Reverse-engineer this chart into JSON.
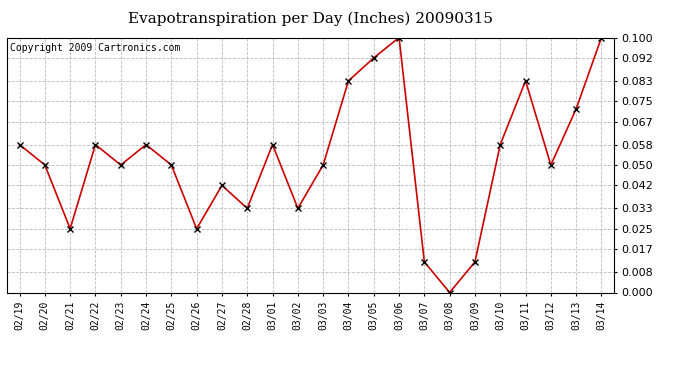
{
  "title": "Evapotranspiration per Day (Inches) 20090315",
  "copyright_text": "Copyright 2009 Cartronics.com",
  "dates": [
    "02/19",
    "02/20",
    "02/21",
    "02/22",
    "02/23",
    "02/24",
    "02/25",
    "02/26",
    "02/27",
    "02/28",
    "03/01",
    "03/02",
    "03/03",
    "03/04",
    "03/05",
    "03/06",
    "03/07",
    "03/08",
    "03/09",
    "03/10",
    "03/11",
    "03/12",
    "03/13",
    "03/14"
  ],
  "values": [
    0.058,
    0.05,
    0.025,
    0.058,
    0.05,
    0.058,
    0.05,
    0.025,
    0.042,
    0.033,
    0.058,
    0.033,
    0.05,
    0.083,
    0.092,
    0.1,
    0.012,
    0.0,
    0.012,
    0.058,
    0.083,
    0.05,
    0.072,
    0.1
  ],
  "ylim": [
    0.0,
    0.1
  ],
  "yticks": [
    0.0,
    0.008,
    0.017,
    0.025,
    0.033,
    0.042,
    0.05,
    0.058,
    0.067,
    0.075,
    0.083,
    0.092,
    0.1
  ],
  "line_color": "#cc0000",
  "marker": "x",
  "marker_color": "#000000",
  "bg_color": "#ffffff",
  "plot_bg_color": "#ffffff",
  "grid_color": "#bbbbbb",
  "title_fontsize": 11,
  "copyright_fontsize": 7,
  "tick_fontsize": 7,
  "ytick_fontsize": 8
}
